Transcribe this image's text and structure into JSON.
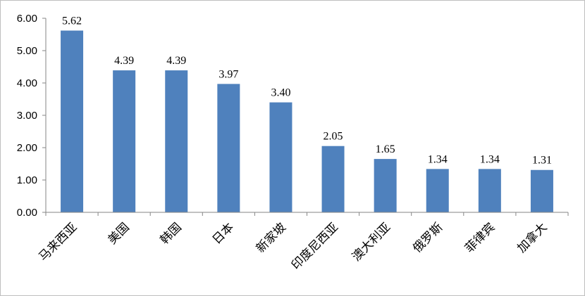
{
  "chart_data": {
    "type": "bar",
    "title": "",
    "xlabel": "",
    "ylabel": "",
    "categories": [
      "马来西亚",
      "美国",
      "韩国",
      "日本",
      "新家坡",
      "印度尼西亚",
      "澳大利亚",
      "俄罗斯",
      "菲律宾",
      "加拿大"
    ],
    "values": [
      5.62,
      4.39,
      4.39,
      3.97,
      3.4,
      2.05,
      1.65,
      1.34,
      1.34,
      1.31
    ],
    "data_labels": [
      "5.62",
      "4.39",
      "4.39",
      "3.97",
      "3.40",
      "2.05",
      "1.65",
      "1.34",
      "1.34",
      "1.31"
    ],
    "ylim": [
      0,
      6
    ],
    "y_ticks": [
      0,
      1,
      2,
      3,
      4,
      5,
      6
    ],
    "y_tick_labels": [
      "0.00",
      "1.00",
      "2.00",
      "3.00",
      "4.00",
      "5.00",
      "6.00"
    ],
    "grid": false,
    "legend": "none",
    "bar_color": "#4f81bd",
    "axis_color": "#868686",
    "frame_color": "#bfbfbf"
  }
}
